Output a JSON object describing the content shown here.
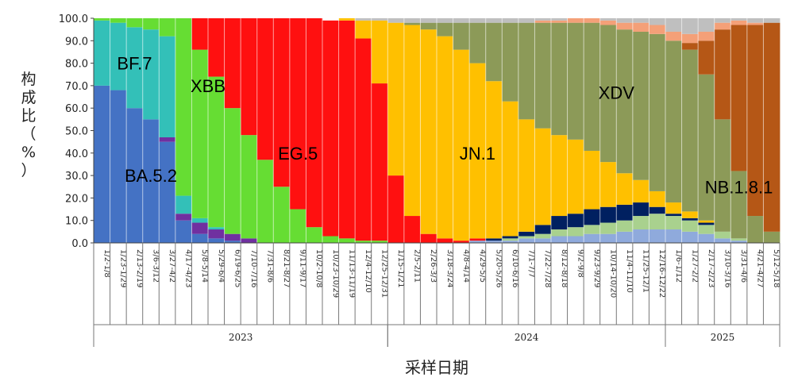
{
  "chart_data": {
    "type": "area",
    "title": "",
    "xlabel": "采样日期",
    "ylabel": "构成比（%）",
    "ylim": [
      0,
      100
    ],
    "yticks": [
      "0.0",
      "10.0",
      "20.0",
      "30.0",
      "40.0",
      "50.0",
      "60.0",
      "70.0",
      "80.0",
      "90.0",
      "100.0"
    ],
    "x": [
      "1/2-1/8",
      "1/23-1/29",
      "2/13-2/19",
      "3/6-3/12",
      "3/27-4/2",
      "4/17-4/23",
      "5/8-5/14",
      "5/29-6/4",
      "6/19-6/25",
      "7/10-7/16",
      "7/31-8/6",
      "8/21-8/27",
      "9/11-9/17",
      "10/2-10/8",
      "10/23-10/29",
      "11/13-11/19",
      "12/4-12/10",
      "12/25-12/31",
      "1/15-1/21",
      "2/5-2/11",
      "2/26-3/3",
      "3/18-3/24",
      "4/8-4/14",
      "4/29-5/5",
      "5/20-5/26",
      "6/10-6/16",
      "7/1-7/7",
      "7/22-7/28",
      "8/12-8/18",
      "9/2-9/8",
      "9/23-9/29",
      "10/14-10/20",
      "11/4-11/10",
      "11/25-12/1",
      "12/16-12/22",
      "1/6-1/12",
      "1/27-2/2",
      "2/17-2/23",
      "3/10-3/16",
      "3/31-4/6",
      "4/21-4/27",
      "5/12-5/18"
    ],
    "years": [
      {
        "label": "2023",
        "from": 0,
        "to": 17
      },
      {
        "label": "2024",
        "from": 18,
        "to": 34
      },
      {
        "label": "2025",
        "from": 35,
        "to": 41
      }
    ],
    "series": [
      {
        "name": "BA.5.2",
        "color": "#4472c4",
        "values": [
          70,
          68,
          60,
          55,
          45,
          10,
          4,
          2,
          1,
          0,
          0,
          0,
          0,
          0,
          0,
          0,
          0,
          0,
          0,
          0,
          0,
          0,
          0,
          0,
          0,
          0,
          0,
          0,
          0,
          0,
          0,
          0,
          0,
          0,
          0,
          0,
          0,
          0,
          0,
          0,
          0,
          0
        ]
      },
      {
        "name": "",
        "color": "#7030a0",
        "values": [
          0,
          0,
          0,
          0,
          2,
          3,
          5,
          4,
          3,
          2,
          0,
          0,
          0,
          0,
          0,
          0,
          0,
          0,
          0,
          0,
          0,
          0,
          0,
          0,
          0,
          0,
          0,
          0,
          0,
          0,
          0,
          0,
          0,
          0,
          0,
          0,
          0,
          0,
          0,
          0,
          0,
          0
        ]
      },
      {
        "name": "",
        "color": "#8faadc",
        "values": [
          0,
          0,
          0,
          0,
          0,
          0,
          0,
          0,
          0,
          0,
          0,
          0,
          0,
          0,
          0,
          0,
          0,
          0,
          0,
          0,
          0,
          0,
          0,
          1,
          1,
          1,
          2,
          2,
          3,
          3,
          4,
          4,
          5,
          6,
          6,
          6,
          5,
          4,
          2,
          1,
          0,
          0
        ]
      },
      {
        "name": "",
        "color": "#a9d18e",
        "values": [
          0,
          0,
          0,
          0,
          0,
          0,
          0,
          0,
          0,
          0,
          0,
          0,
          0,
          0,
          0,
          0,
          0,
          0,
          0,
          0,
          0,
          0,
          0,
          0,
          0,
          1,
          1,
          2,
          3,
          4,
          4,
          5,
          5,
          6,
          7,
          6,
          5,
          4,
          3,
          1,
          0,
          0
        ]
      },
      {
        "name": "",
        "color": "#002060",
        "values": [
          0,
          0,
          0,
          0,
          0,
          0,
          0,
          0,
          0,
          0,
          0,
          0,
          0,
          0,
          0,
          0,
          0,
          0,
          0,
          0,
          0,
          0,
          0,
          0,
          1,
          1,
          2,
          4,
          6,
          6,
          7,
          7,
          7,
          6,
          3,
          1,
          1,
          1,
          0,
          0,
          0,
          0
        ]
      },
      {
        "name": "BF.7",
        "color": "#33c0b8",
        "values": [
          29,
          30,
          36,
          40,
          45,
          8,
          2,
          1,
          0,
          0,
          0,
          0,
          0,
          0,
          0,
          0,
          0,
          0,
          0,
          0,
          0,
          0,
          0,
          0,
          0,
          0,
          0,
          0,
          0,
          0,
          0,
          0,
          0,
          0,
          0,
          0,
          0,
          0,
          0,
          0,
          0,
          0
        ]
      },
      {
        "name": "XBB",
        "color": "#66dd33",
        "values": [
          1,
          2,
          4,
          5,
          8,
          79,
          75,
          67,
          56,
          46,
          37,
          25,
          15,
          7,
          3,
          2,
          1,
          1,
          0,
          0,
          0,
          0,
          0,
          0,
          0,
          0,
          0,
          0,
          0,
          0,
          0,
          0,
          0,
          0,
          0,
          0,
          0,
          0,
          0,
          0,
          0,
          0
        ]
      },
      {
        "name": "EG.5",
        "color": "#ff1010",
        "values": [
          0,
          0,
          0,
          0,
          0,
          0,
          14,
          26,
          40,
          52,
          63,
          75,
          85,
          93,
          96,
          97,
          90,
          70,
          30,
          12,
          4,
          2,
          1,
          1,
          0,
          0,
          0,
          0,
          0,
          0,
          0,
          0,
          0,
          0,
          0,
          0,
          0,
          0,
          0,
          0,
          0,
          0
        ]
      },
      {
        "name": "JN.1",
        "color": "#ffc000",
        "values": [
          0,
          0,
          0,
          0,
          0,
          0,
          0,
          0,
          0,
          0,
          0,
          0,
          0,
          0,
          0,
          1,
          8,
          28,
          68,
          85,
          91,
          90,
          85,
          78,
          70,
          60,
          50,
          43,
          36,
          33,
          26,
          20,
          14,
          10,
          7,
          5,
          3,
          1,
          0,
          0,
          0,
          0
        ]
      },
      {
        "name": "XDV",
        "color": "#8c9a58",
        "values": [
          0,
          0,
          0,
          0,
          0,
          0,
          0,
          0,
          0,
          0,
          0,
          0,
          0,
          0,
          0,
          0,
          0,
          0,
          0,
          1,
          3,
          6,
          12,
          18,
          26,
          35,
          43,
          47,
          50,
          52,
          57,
          61,
          64,
          66,
          70,
          72,
          72,
          65,
          50,
          30,
          12,
          5
        ]
      },
      {
        "name": "NB.1.8.1",
        "color": "#b55716",
        "values": [
          0,
          0,
          0,
          0,
          0,
          0,
          0,
          0,
          0,
          0,
          0,
          0,
          0,
          0,
          0,
          0,
          0,
          0,
          0,
          0,
          0,
          0,
          0,
          0,
          0,
          0,
          0,
          0,
          0,
          0,
          0,
          0,
          0,
          0,
          0,
          0,
          3,
          15,
          40,
          65,
          85,
          93
        ]
      },
      {
        "name": "",
        "color": "#f4a078",
        "values": [
          0,
          0,
          0,
          0,
          0,
          0,
          0,
          0,
          0,
          0,
          0,
          0,
          0,
          0,
          0,
          0,
          0,
          0,
          0,
          0,
          0,
          0,
          0,
          0,
          0,
          0,
          0,
          1,
          1,
          2,
          2,
          2,
          3,
          4,
          4,
          4,
          4,
          4,
          3,
          2,
          1,
          0
        ]
      },
      {
        "name": "",
        "color": "#bfbfbf",
        "values": [
          0,
          0,
          0,
          0,
          0,
          0,
          0,
          0,
          0,
          0,
          0,
          0,
          0,
          0,
          0,
          0,
          1,
          1,
          2,
          2,
          2,
          2,
          2,
          2,
          2,
          2,
          2,
          1,
          1,
          0,
          0,
          1,
          2,
          2,
          3,
          6,
          7,
          6,
          2,
          1,
          2,
          2
        ]
      }
    ],
    "annotations": [
      {
        "text": "BA.5.2",
        "x": 3.0,
        "y": 30
      },
      {
        "text": "BF.7",
        "x": 2.0,
        "y": 80
      },
      {
        "text": "XBB",
        "x": 6.5,
        "y": 70
      },
      {
        "text": "EG.5",
        "x": 12.0,
        "y": 40
      },
      {
        "text": "JN.1",
        "x": 23.0,
        "y": 40
      },
      {
        "text": "XDV",
        "x": 31.5,
        "y": 67
      },
      {
        "text": "NB.1.8.1",
        "x": 39.0,
        "y": 25
      }
    ]
  }
}
